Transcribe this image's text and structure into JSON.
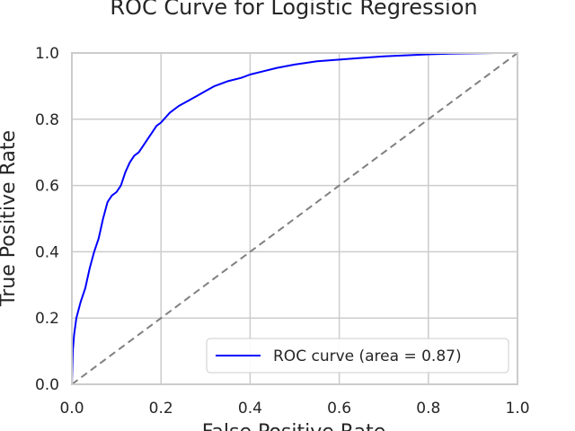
{
  "chart_data": {
    "type": "line",
    "title": "ROC Curve for Logistic Regression",
    "xlabel": "False Positive Rate",
    "ylabel": "True Positive Rate",
    "xlim": [
      0.0,
      1.0
    ],
    "ylim": [
      0.0,
      1.0
    ],
    "xticks": [
      "0.0",
      "0.2",
      "0.4",
      "0.6",
      "0.8",
      "1.0"
    ],
    "yticks": [
      "0.0",
      "0.2",
      "0.4",
      "0.6",
      "0.8",
      "1.0"
    ],
    "grid": true,
    "legend_position": "lower-right",
    "colors": {
      "roc": "#0000ff",
      "reference": "#808080",
      "grid": "#cccccc",
      "frame": "#cccccc"
    },
    "series": [
      {
        "name": "ROC curve (area = 0.87)",
        "style": "solid",
        "x": [
          0.0,
          0.002,
          0.005,
          0.01,
          0.02,
          0.03,
          0.04,
          0.05,
          0.06,
          0.07,
          0.08,
          0.09,
          0.1,
          0.11,
          0.12,
          0.13,
          0.14,
          0.15,
          0.16,
          0.17,
          0.18,
          0.19,
          0.2,
          0.22,
          0.24,
          0.26,
          0.28,
          0.3,
          0.32,
          0.35,
          0.38,
          0.4,
          0.43,
          0.46,
          0.5,
          0.55,
          0.6,
          0.65,
          0.7,
          0.75,
          0.8,
          0.85,
          0.9,
          0.95,
          1.0
        ],
        "y": [
          0.0,
          0.1,
          0.15,
          0.2,
          0.25,
          0.29,
          0.35,
          0.4,
          0.44,
          0.5,
          0.55,
          0.57,
          0.58,
          0.6,
          0.64,
          0.67,
          0.69,
          0.7,
          0.72,
          0.74,
          0.76,
          0.78,
          0.79,
          0.82,
          0.84,
          0.855,
          0.87,
          0.885,
          0.9,
          0.915,
          0.925,
          0.935,
          0.945,
          0.955,
          0.965,
          0.975,
          0.98,
          0.985,
          0.99,
          0.993,
          0.996,
          0.998,
          0.999,
          1.0,
          1.0
        ]
      },
      {
        "name": "",
        "style": "dashed",
        "x": [
          0.0,
          1.0
        ],
        "y": [
          0.0,
          1.0
        ]
      }
    ]
  }
}
